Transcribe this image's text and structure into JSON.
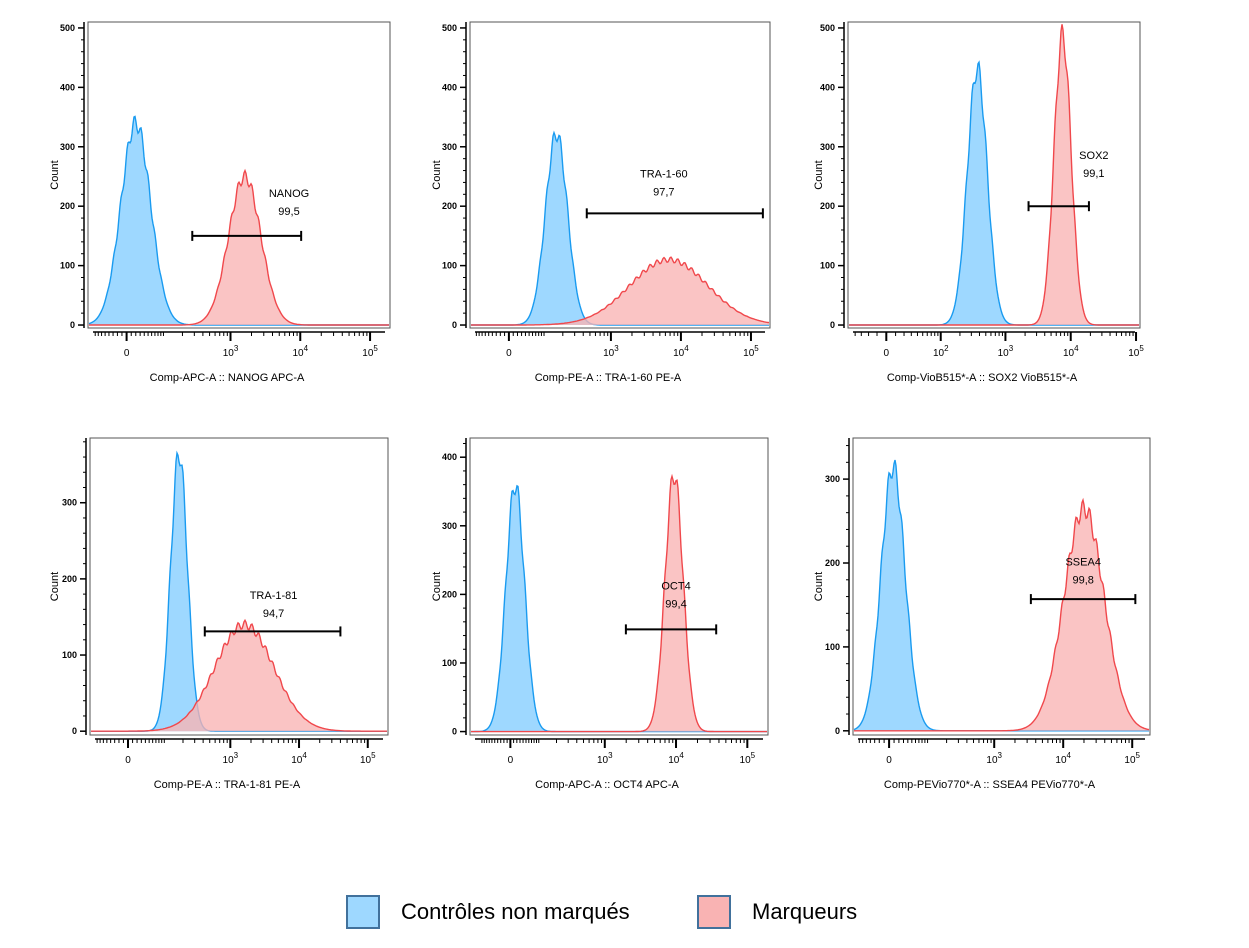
{
  "chart_data": [
    {
      "type": "area",
      "title": "",
      "xlabel": "Comp-APC-A :: NANOG APC-A",
      "ylabel": "Count",
      "x_scale": "biexponential",
      "transform_width": 65,
      "xlim": [
        -107,
        193000
      ],
      "ylim": [
        -5,
        510
      ],
      "yticks": [
        0,
        100,
        200,
        300,
        400,
        500
      ],
      "xticks": [
        {
          "value": 0,
          "base": "0",
          "exp": ""
        },
        {
          "value": 1000,
          "base": "10",
          "exp": "3"
        },
        {
          "value": 10000,
          "base": "10",
          "exp": "4"
        },
        {
          "value": 100000,
          "base": "10",
          "exp": "5"
        }
      ],
      "series": [
        {
          "name": "Contrôles non marqués",
          "center": 20,
          "peak_count": 340,
          "spread": 0.49
        },
        {
          "name": "Marqueurs",
          "center": 1600,
          "peak_count": 250,
          "spread": 0.53
        }
      ],
      "gate": {
        "name": "NANOG",
        "percent": "99,5",
        "from": 280,
        "to": 10300,
        "count_level": 150,
        "label_at": 6900,
        "label_count": 222
      }
    },
    {
      "type": "area",
      "title": "",
      "xlabel": "Comp-PE-A :: TRA-1-60 PE-A",
      "ylabel": "Count",
      "x_scale": "biexponential",
      "transform_width": 70,
      "xlim": [
        -116,
        187000
      ],
      "ylim": [
        -5,
        510
      ],
      "yticks": [
        0,
        100,
        200,
        300,
        400,
        500
      ],
      "xticks": [
        {
          "value": 0,
          "base": "0",
          "exp": ""
        },
        {
          "value": 1000,
          "base": "10",
          "exp": "3"
        },
        {
          "value": 10000,
          "base": "10",
          "exp": "4"
        },
        {
          "value": 100000,
          "base": "10",
          "exp": "5"
        }
      ],
      "series": [
        {
          "name": "Contrôles non marqués",
          "center": 160,
          "peak_count": 322,
          "spread": 0.36
        },
        {
          "name": "Marqueurs",
          "center": 6700,
          "peak_count": 110,
          "spread": 1.28
        }
      ],
      "gate": {
        "name": "TRA-1-60",
        "percent": "97,7",
        "from": 450,
        "to": 148000,
        "count_level": 188,
        "label_at": 5700,
        "label_count": 255
      }
    },
    {
      "type": "area",
      "title": "",
      "xlabel": "Comp-VioB515*-A :: SOX2 VioB515*-A",
      "ylabel": "Count",
      "x_scale": "biexponential",
      "transform_width": 30,
      "xlim": [
        -54,
        115000
      ],
      "ylim": [
        -5,
        510
      ],
      "yticks": [
        0,
        100,
        200,
        300,
        400,
        500
      ],
      "xticks": [
        {
          "value": 0,
          "base": "0",
          "exp": ""
        },
        {
          "value": 100,
          "base": "10",
          "exp": "2"
        },
        {
          "value": 1000,
          "base": "10",
          "exp": "3"
        },
        {
          "value": 10000,
          "base": "10",
          "exp": "4"
        },
        {
          "value": 100000,
          "base": "10",
          "exp": "5"
        }
      ],
      "series": [
        {
          "name": "Contrôles non marqués",
          "center": 370,
          "peak_count": 432,
          "spread": 0.35
        },
        {
          "name": "Marqueurs",
          "center": 7500,
          "peak_count": 488,
          "spread": 0.3
        }
      ],
      "gate": {
        "name": "SOX2",
        "percent": "99,1",
        "from": 2260,
        "to": 19000,
        "count_level": 200,
        "label_at": 22600,
        "label_count": 286
      }
    },
    {
      "type": "area",
      "title": "",
      "xlabel": "Comp-PE-A :: TRA-1-81 PE-A",
      "ylabel": "Count",
      "x_scale": "biexponential",
      "transform_width": 65,
      "xlim": [
        -107,
        197000
      ],
      "ylim": [
        -5,
        385
      ],
      "yticks": [
        0,
        100,
        200,
        300
      ],
      "xticks": [
        {
          "value": 0,
          "base": "0",
          "exp": ""
        },
        {
          "value": 1000,
          "base": "10",
          "exp": "3"
        },
        {
          "value": 10000,
          "base": "10",
          "exp": "4"
        },
        {
          "value": 100000,
          "base": "10",
          "exp": "5"
        }
      ],
      "series": [
        {
          "name": "Contrôles non marqués",
          "center": 174,
          "peak_count": 365,
          "spread": 0.28
        },
        {
          "name": "Marqueurs",
          "center": 1600,
          "peak_count": 140,
          "spread": 0.98
        }
      ],
      "gate": {
        "name": "TRA-1-81",
        "percent": "94,7",
        "from": 423,
        "to": 40000,
        "count_level": 131,
        "label_at": 4260,
        "label_count": 179
      }
    },
    {
      "type": "area",
      "title": "",
      "xlabel": "Comp-APC-A :: OCT4 APC-A",
      "ylabel": "Count",
      "x_scale": "biexponential",
      "transform_width": 95,
      "xlim": [
        -162,
        195000
      ],
      "ylim": [
        -5,
        428
      ],
      "yticks": [
        0,
        100,
        200,
        300,
        400
      ],
      "xticks": [
        {
          "value": 0,
          "base": "0",
          "exp": ""
        },
        {
          "value": 1000,
          "base": "10",
          "exp": "3"
        },
        {
          "value": 10000,
          "base": "10",
          "exp": "4"
        },
        {
          "value": 100000,
          "base": "10",
          "exp": "5"
        }
      ],
      "series": [
        {
          "name": "Contrôles non marqués",
          "center": 15,
          "peak_count": 360,
          "spread": 0.3
        },
        {
          "name": "Marqueurs",
          "center": 9400,
          "peak_count": 375,
          "spread": 0.29
        }
      ],
      "gate": {
        "name": "OCT4",
        "percent": "99,4",
        "from": 1980,
        "to": 36600,
        "count_level": 149,
        "label_at": 10000,
        "label_count": 213
      }
    },
    {
      "type": "area",
      "title": "",
      "xlabel": "Comp-PEVio770*-A :: SSEA4 PEVio770*-A",
      "ylabel": "Count",
      "x_scale": "biexponential",
      "transform_width": 60,
      "xlim": [
        -91,
        181000
      ],
      "ylim": [
        -5,
        349
      ],
      "yticks": [
        0,
        100,
        200,
        300
      ],
      "xticks": [
        {
          "value": 0,
          "base": "0",
          "exp": ""
        },
        {
          "value": 1000,
          "base": "10",
          "exp": "3"
        },
        {
          "value": 10000,
          "base": "10",
          "exp": "4"
        },
        {
          "value": 100000,
          "base": "10",
          "exp": "5"
        }
      ],
      "series": [
        {
          "name": "Contrôles non marqués",
          "center": 8,
          "peak_count": 315,
          "spread": 0.4
        },
        {
          "name": "Marqueurs",
          "center": 20000,
          "peak_count": 265,
          "spread": 0.67
        }
      ],
      "gate": {
        "name": "SSEA4",
        "percent": "99,8",
        "from": 3400,
        "to": 111000,
        "count_level": 157,
        "label_at": 19500,
        "label_count": 202
      }
    }
  ],
  "legend": {
    "items": [
      {
        "label": "Contrôles non marqués",
        "fill": "#9ed8ff",
        "line": "#1a9bf0"
      },
      {
        "label": "Marqueurs",
        "fill": "#f9b3b3",
        "line": "#f0484c"
      }
    ]
  },
  "colors": {
    "gate": "#000000",
    "frame": "#000000"
  }
}
